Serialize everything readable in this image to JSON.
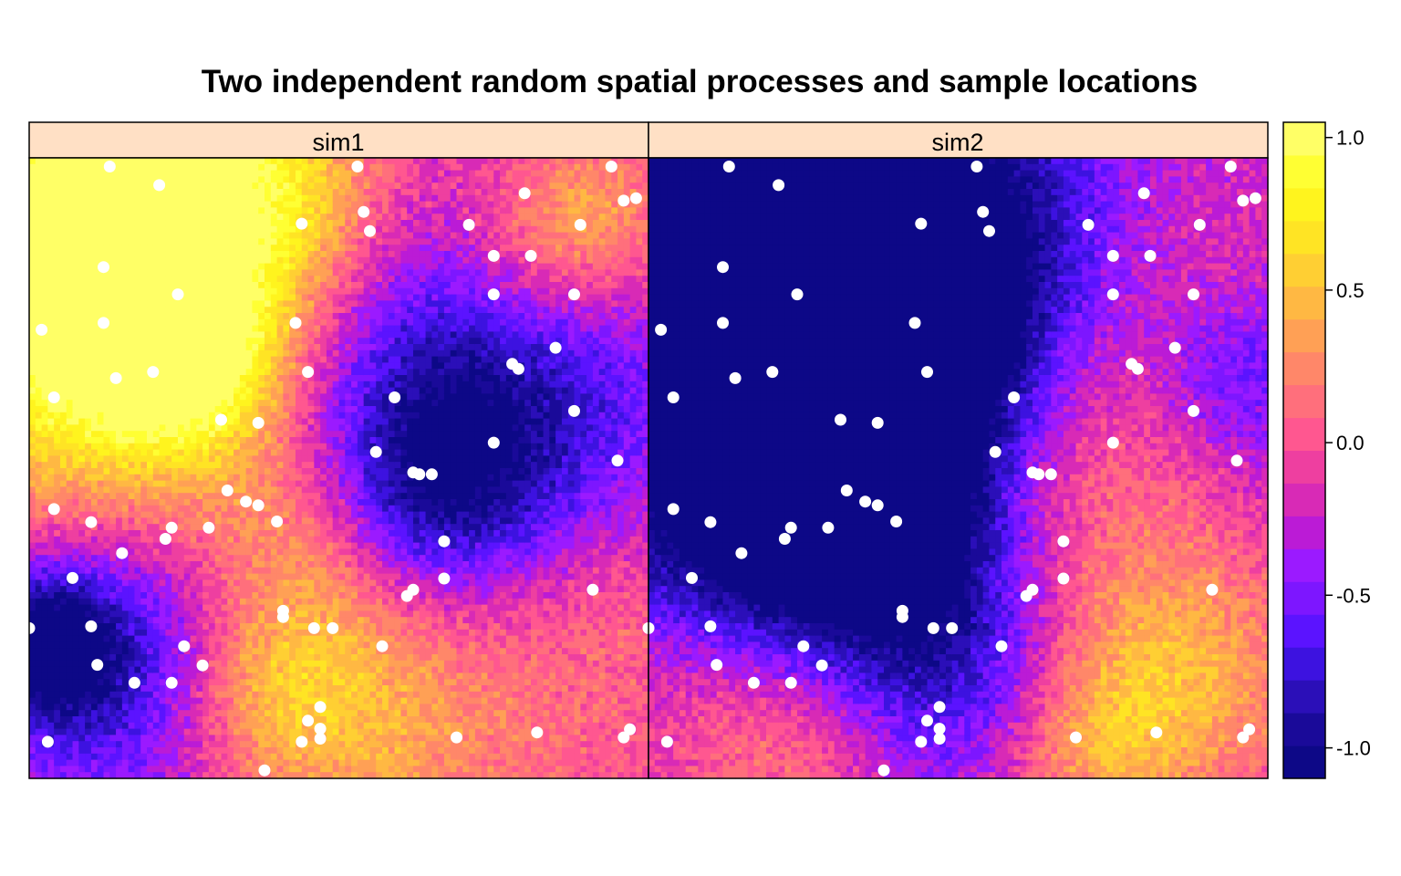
{
  "chart_data": {
    "type": "heatmap",
    "title": "Two independent random spatial processes and sample locations",
    "xlabel": "",
    "ylabel": "",
    "grid": false,
    "panels": [
      {
        "name": "sim1",
        "field_blobs": [
          [
            0.1,
            0.05,
            0.22,
            0.95
          ],
          [
            0.28,
            0.05,
            0.18,
            0.75
          ],
          [
            0.05,
            0.35,
            0.18,
            0.75
          ],
          [
            0.3,
            0.4,
            0.15,
            0.55
          ],
          [
            0.25,
            0.3,
            0.1,
            0.8
          ],
          [
            0.45,
            0.1,
            0.12,
            0.4
          ],
          [
            0.6,
            0.3,
            0.25,
            -0.65
          ],
          [
            0.8,
            0.4,
            0.2,
            -0.55
          ],
          [
            0.65,
            0.55,
            0.12,
            -0.6
          ],
          [
            0.8,
            0.15,
            0.12,
            0.4
          ],
          [
            0.9,
            0.1,
            0.1,
            0.55
          ],
          [
            0.12,
            0.82,
            0.17,
            -0.85
          ],
          [
            0.03,
            0.78,
            0.08,
            -0.8
          ],
          [
            0.5,
            0.78,
            0.18,
            0.4
          ],
          [
            0.55,
            0.95,
            0.15,
            0.25
          ],
          [
            0.85,
            0.85,
            0.18,
            0.15
          ],
          [
            0.95,
            0.7,
            0.1,
            0.15
          ],
          [
            0.45,
            0.62,
            0.1,
            0.3
          ],
          [
            0.38,
            0.85,
            0.1,
            0.45
          ]
        ],
        "field_base": -0.05
      },
      {
        "name": "sim2",
        "field_blobs": [
          [
            0.15,
            0.25,
            0.25,
            -0.8
          ],
          [
            0.35,
            0.25,
            0.2,
            -0.95
          ],
          [
            0.3,
            0.45,
            0.18,
            -0.85
          ],
          [
            0.05,
            0.15,
            0.1,
            -0.75
          ],
          [
            0.5,
            0.1,
            0.25,
            -0.7
          ],
          [
            0.2,
            0.6,
            0.2,
            -0.65
          ],
          [
            0.8,
            0.15,
            0.22,
            0.35
          ],
          [
            0.75,
            0.35,
            0.15,
            0.15
          ],
          [
            0.95,
            0.35,
            0.1,
            -0.45
          ],
          [
            0.65,
            0.5,
            0.15,
            0.35
          ],
          [
            0.75,
            0.75,
            0.2,
            0.4
          ],
          [
            0.9,
            0.85,
            0.15,
            0.5
          ],
          [
            0.1,
            0.88,
            0.15,
            0.4
          ],
          [
            0.25,
            0.95,
            0.12,
            0.35
          ],
          [
            0.7,
            0.95,
            0.12,
            0.55
          ],
          [
            0.55,
            0.88,
            0.12,
            -0.4
          ],
          [
            0.45,
            0.7,
            0.15,
            -0.55
          ]
        ],
        "field_base": -0.3
      }
    ],
    "colorbar": {
      "min": -1.1,
      "max": 1.05,
      "ticks": [
        1.0,
        0.5,
        0.0,
        -0.5,
        -1.0
      ],
      "tick_labels": [
        "1.0",
        "0.5",
        "0.0",
        "-0.5",
        "-1.0"
      ],
      "levels": 20,
      "palette": [
        "#0d0887",
        "#1a0a99",
        "#2b0fb8",
        "#3d12e0",
        "#5b13ff",
        "#7d16ff",
        "#9b1aff",
        "#bb1bd6",
        "#d82ab6",
        "#ee3fa0",
        "#ff5790",
        "#ff6f7c",
        "#ff8769",
        "#ffa055",
        "#ffb843",
        "#ffcf33",
        "#ffe424",
        "#fff41e",
        "#ffff33",
        "#ffff66"
      ]
    },
    "sample_points": [
      [
        0.13,
        0.986
      ],
      [
        0.53,
        0.986
      ],
      [
        0.21,
        0.956
      ],
      [
        0.8,
        0.943
      ],
      [
        0.94,
        0.986
      ],
      [
        0.98,
        0.935
      ],
      [
        0.96,
        0.931
      ],
      [
        0.54,
        0.913
      ],
      [
        0.55,
        0.882
      ],
      [
        0.44,
        0.894
      ],
      [
        0.71,
        0.892
      ],
      [
        0.89,
        0.892
      ],
      [
        0.75,
        0.842
      ],
      [
        0.81,
        0.842
      ],
      [
        0.12,
        0.824
      ],
      [
        0.24,
        0.78
      ],
      [
        0.75,
        0.78
      ],
      [
        0.88,
        0.78
      ],
      [
        0.02,
        0.723
      ],
      [
        0.12,
        0.734
      ],
      [
        0.43,
        0.734
      ],
      [
        0.85,
        0.694
      ],
      [
        0.78,
        0.668
      ],
      [
        0.79,
        0.66
      ],
      [
        0.14,
        0.645
      ],
      [
        0.2,
        0.655
      ],
      [
        0.45,
        0.655
      ],
      [
        0.04,
        0.614
      ],
      [
        0.59,
        0.614
      ],
      [
        0.88,
        0.592
      ],
      [
        0.31,
        0.578
      ],
      [
        0.37,
        0.573
      ],
      [
        0.75,
        0.541
      ],
      [
        0.95,
        0.512
      ],
      [
        0.56,
        0.526
      ],
      [
        0.62,
        0.493
      ],
      [
        0.63,
        0.49
      ],
      [
        0.65,
        0.49
      ],
      [
        0.32,
        0.464
      ],
      [
        0.35,
        0.446
      ],
      [
        0.37,
        0.44
      ],
      [
        0.4,
        0.414
      ],
      [
        0.04,
        0.434
      ],
      [
        0.1,
        0.413
      ],
      [
        0.23,
        0.404
      ],
      [
        0.22,
        0.386
      ],
      [
        0.29,
        0.404
      ],
      [
        0.67,
        0.382
      ],
      [
        0.15,
        0.363
      ],
      [
        0.07,
        0.323
      ],
      [
        0.67,
        0.322
      ],
      [
        0.62,
        0.304
      ],
      [
        0.61,
        0.294
      ],
      [
        0.91,
        0.304
      ],
      [
        0.41,
        0.27
      ],
      [
        0.41,
        0.26
      ],
      [
        0.46,
        0.242
      ],
      [
        0.1,
        0.245
      ],
      [
        0.25,
        0.213
      ],
      [
        0.57,
        0.213
      ],
      [
        0.23,
        0.154
      ],
      [
        0.28,
        0.182
      ],
      [
        0.11,
        0.183
      ],
      [
        0.17,
        0.154
      ],
      [
        0.47,
        0.115
      ],
      [
        0.45,
        0.093
      ],
      [
        0.47,
        0.08
      ],
      [
        0.47,
        0.064
      ],
      [
        0.44,
        0.059
      ],
      [
        0.03,
        0.059
      ],
      [
        0.69,
        0.066
      ],
      [
        0.82,
        0.074
      ],
      [
        0.97,
        0.079
      ],
      [
        0.96,
        0.066
      ],
      [
        0.38,
        0.013
      ],
      [
        0.0,
        0.242
      ],
      [
        0.49,
        0.242
      ]
    ]
  }
}
